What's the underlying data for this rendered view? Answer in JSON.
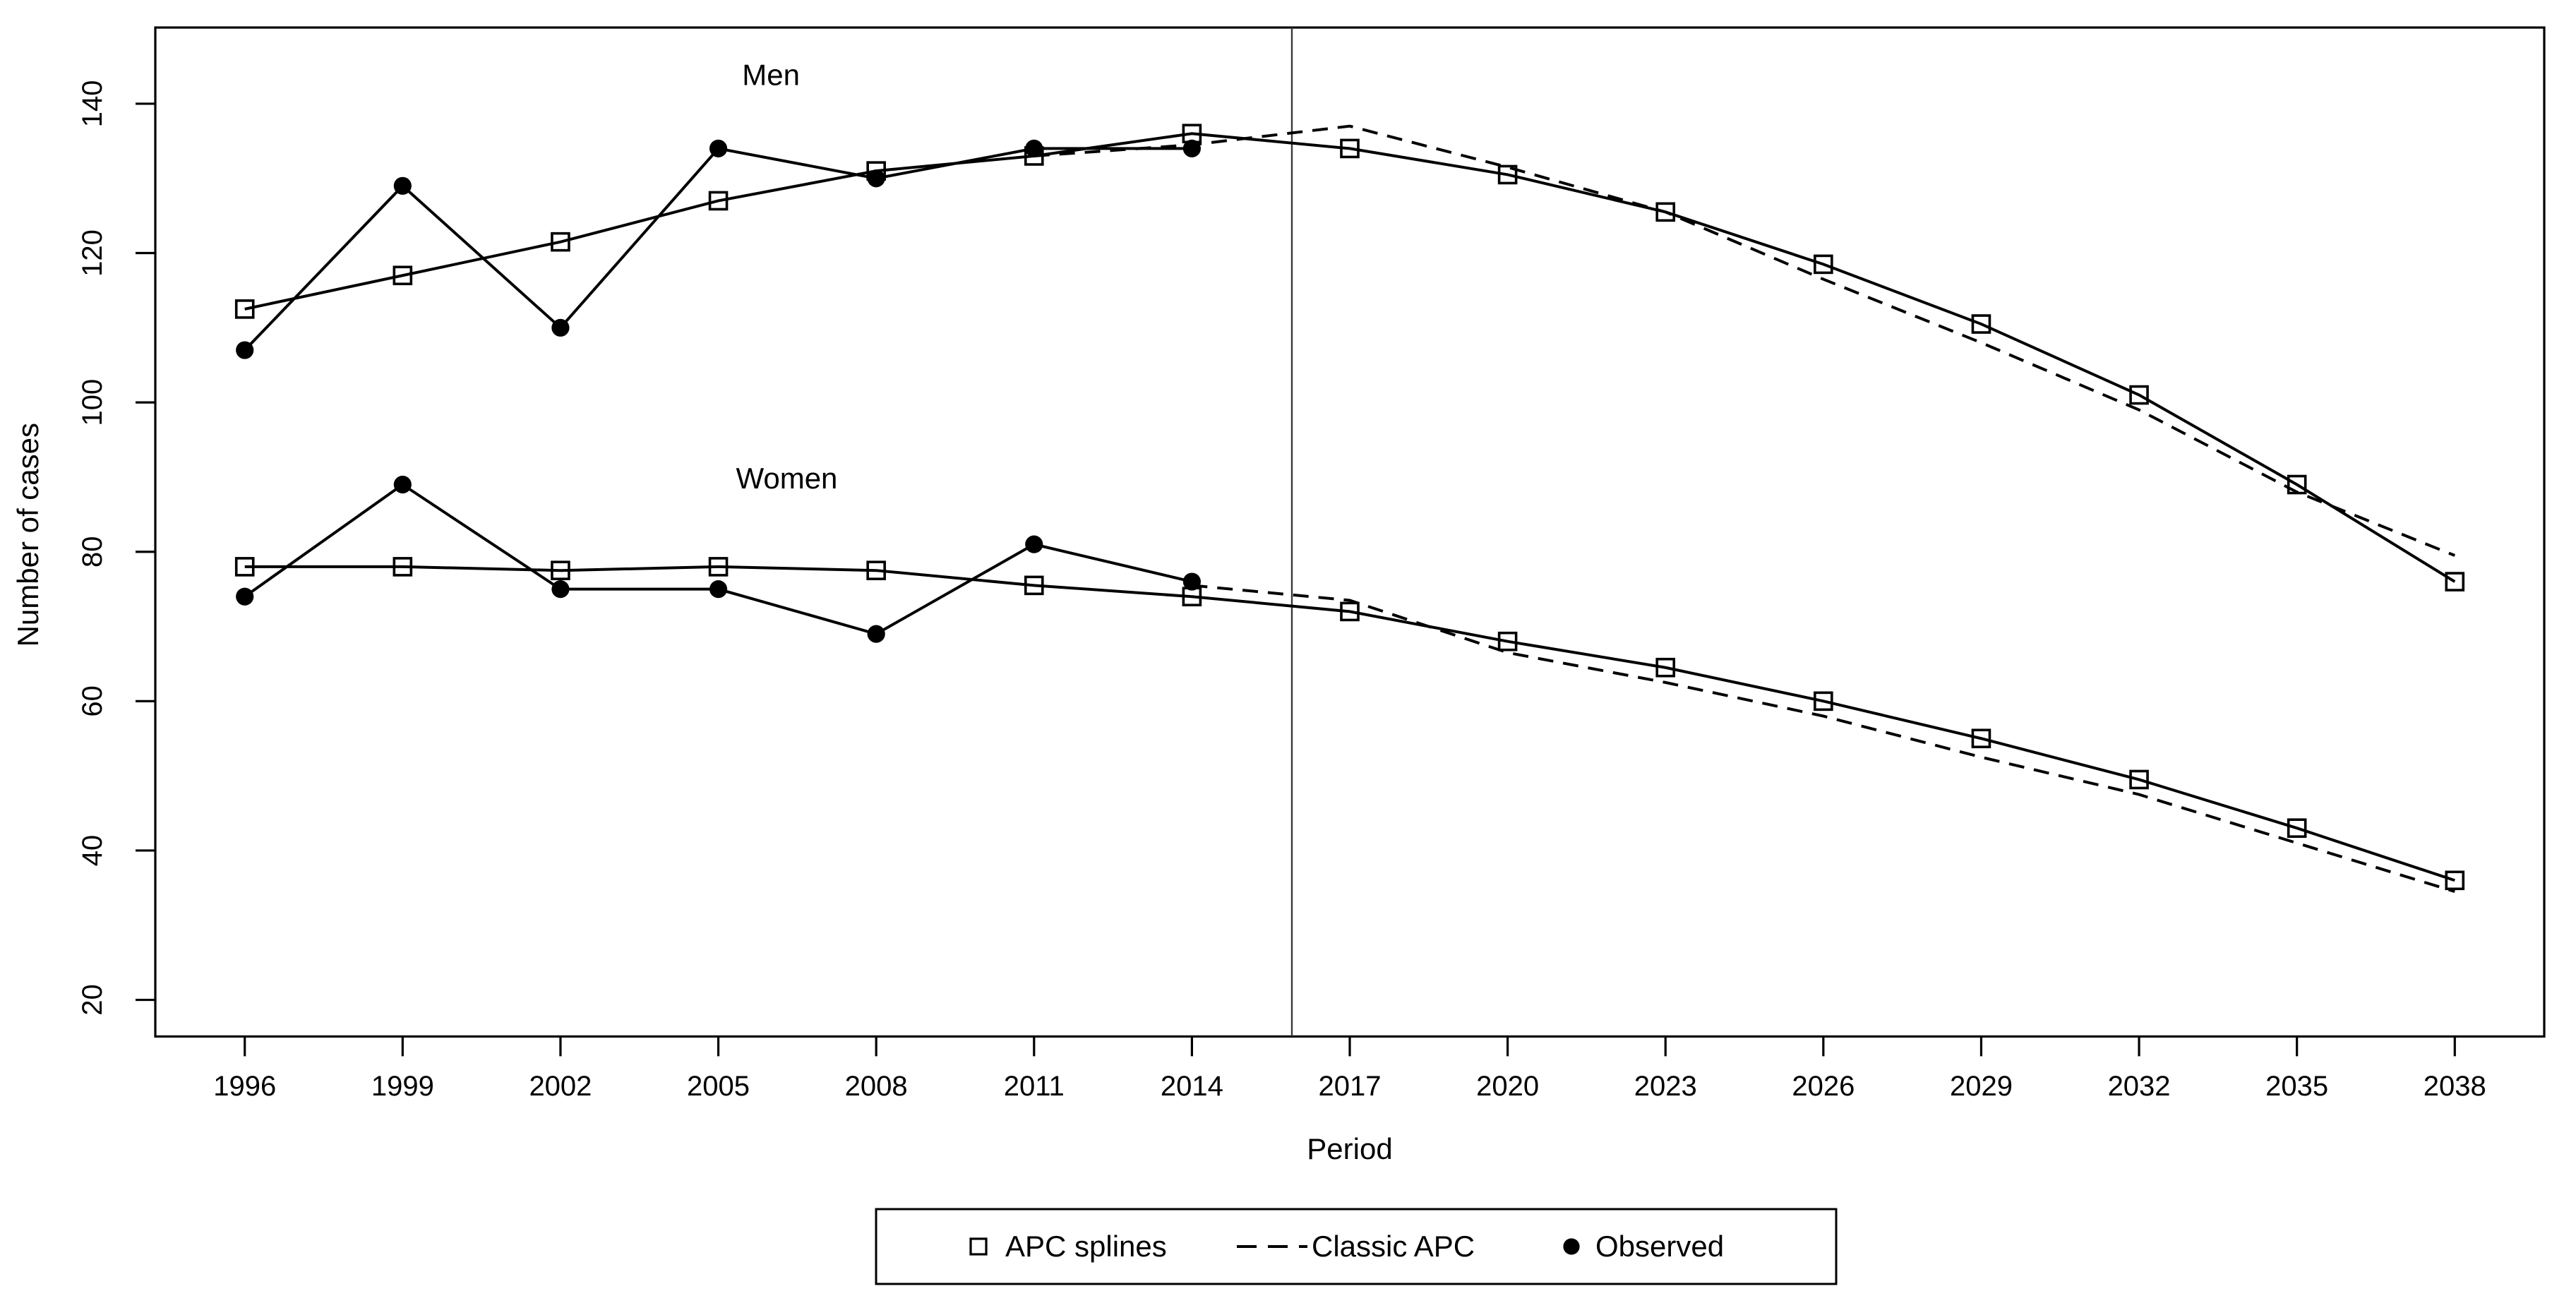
{
  "figure": {
    "background": "#ffffff",
    "line_color": "#000000",
    "cutoff_line_color": "#3a3a3a",
    "xlabel": "Period",
    "ylabel": "Number of cases",
    "annotations": [
      {
        "label": "Men",
        "year": 2006.0,
        "value": 142.5
      },
      {
        "label": "Women",
        "year": 2006.3,
        "value": 88.5
      }
    ],
    "legend": [
      {
        "label": "APC splines",
        "marker": "open-square"
      },
      {
        "label": "Classic APC",
        "marker": "dashed-line"
      },
      {
        "label": "Observed",
        "marker": "filled-circle"
      }
    ]
  },
  "chart_data": {
    "type": "line",
    "title": "",
    "xlabel": "Period",
    "ylabel": "Number of cases",
    "x_ticks": [
      1996,
      1999,
      2002,
      2005,
      2008,
      2011,
      2014,
      2017,
      2020,
      2023,
      2026,
      2029,
      2032,
      2035,
      2038
    ],
    "y_ticks": [
      20,
      40,
      60,
      80,
      100,
      120,
      140
    ],
    "x_range": [
      1994.3,
      2039.7
    ],
    "y_range": [
      15.1,
      150.2
    ],
    "cutoff_year": 2015.9,
    "grid": false,
    "legend_position": "bottom-center-outside",
    "series": [
      {
        "name": "Men - APC splines",
        "group": "men",
        "style": "solid",
        "marker": "open-square",
        "x": [
          1996,
          1999,
          2002,
          2005,
          2008,
          2011,
          2014,
          2017,
          2020,
          2023,
          2026,
          2029,
          2032,
          2035,
          2038
        ],
        "y": [
          112.5,
          117,
          121.5,
          127,
          131,
          133,
          136,
          134,
          130.5,
          125.5,
          118.5,
          110.5,
          101,
          89,
          76
        ]
      },
      {
        "name": "Men - Classic APC",
        "group": "men",
        "style": "dashed",
        "marker": "none",
        "x": [
          2011,
          2014,
          2017,
          2020,
          2023,
          2026,
          2029,
          2032,
          2035,
          2038
        ],
        "y": [
          133,
          134.5,
          137,
          131.5,
          125.5,
          116.5,
          108,
          99,
          88,
          79.5
        ]
      },
      {
        "name": "Men - Observed",
        "group": "men",
        "style": "solid",
        "marker": "filled-circle",
        "x": [
          1996,
          1999,
          2002,
          2005,
          2008,
          2011,
          2014
        ],
        "y": [
          107,
          129,
          110,
          134,
          130,
          134,
          134
        ]
      },
      {
        "name": "Women - APC splines",
        "group": "women",
        "style": "solid",
        "marker": "open-square",
        "x": [
          1996,
          1999,
          2002,
          2005,
          2008,
          2011,
          2014,
          2017,
          2020,
          2023,
          2026,
          2029,
          2032,
          2035,
          2038
        ],
        "y": [
          78,
          78,
          77.5,
          78,
          77.5,
          75.5,
          74,
          72,
          68,
          64.5,
          60,
          55,
          49.5,
          43,
          36
        ]
      },
      {
        "name": "Women - Classic APC",
        "group": "women",
        "style": "dashed",
        "marker": "none",
        "x": [
          2014,
          2017,
          2020,
          2023,
          2026,
          2029,
          2032,
          2035,
          2038
        ],
        "y": [
          75.5,
          73.5,
          66.5,
          62.5,
          58,
          52.5,
          47.5,
          41,
          34.5
        ]
      },
      {
        "name": "Women - Observed",
        "group": "women",
        "style": "solid",
        "marker": "filled-circle",
        "x": [
          1996,
          1999,
          2002,
          2005,
          2008,
          2011,
          2014
        ],
        "y": [
          74,
          89,
          75,
          75,
          69,
          81,
          76
        ]
      }
    ]
  }
}
